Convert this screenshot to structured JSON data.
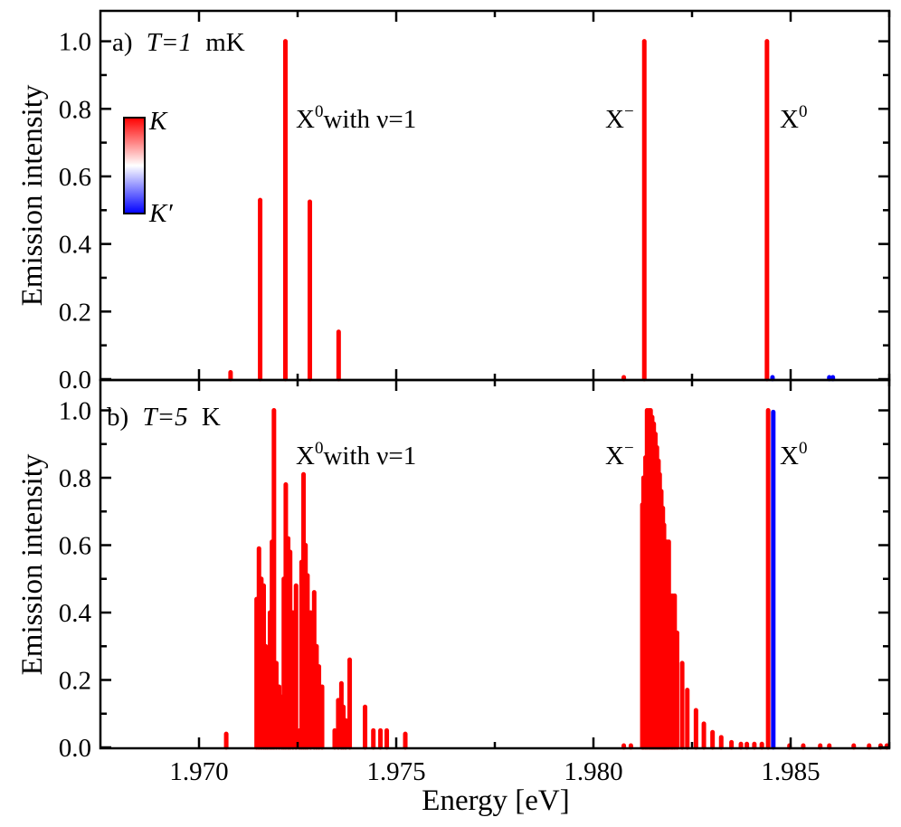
{
  "chart_data": [
    {
      "type": "bar",
      "panel_label": "a)",
      "title_var": "T=1",
      "title_unit": "mK",
      "ylabel": "Emission intensity",
      "xlabel": "",
      "xlim": [
        1.9675,
        1.9875
      ],
      "ylim": [
        0,
        1.09
      ],
      "xticks": [
        1.97,
        1.975,
        1.98,
        1.985
      ],
      "yticks": [
        0.0,
        0.2,
        0.4,
        0.6,
        0.8,
        1.0
      ],
      "ytick_labels": [
        "0.0",
        "0.2",
        "0.4",
        "0.6",
        "0.8",
        "1.0"
      ],
      "grid": false,
      "annotations": [
        {
          "base": "X",
          "sup": "0",
          "rest": "with ν=1"
        },
        {
          "base": "X",
          "sup": "−",
          "rest": ""
        },
        {
          "base": "X",
          "sup": "0",
          "rest": ""
        }
      ],
      "colorbar": {
        "top_label": "K",
        "bottom_label": "K′",
        "top_color": "#ff0000",
        "mid_color": "#ffffff",
        "bottom_color": "#0000ff"
      },
      "series": [
        {
          "name": "K",
          "color": "#ff0000",
          "points": [
            [
              1.9708,
              0.02
            ],
            [
              1.97155,
              0.53
            ],
            [
              1.97219,
              1.0
            ],
            [
              1.97281,
              0.525
            ],
            [
              1.97354,
              0.14
            ],
            [
              1.98077,
              0.003
            ],
            [
              1.98129,
              1.0
            ],
            [
              1.9844,
              1.0
            ]
          ]
        },
        {
          "name": "K′",
          "color": "#0000ff",
          "points": [
            [
              1.98454,
              0.005
            ],
            [
              1.98598,
              0.005
            ],
            [
              1.98607,
              0.005
            ]
          ]
        }
      ]
    },
    {
      "type": "bar",
      "panel_label": "b)",
      "title_var": "T=5",
      "title_unit": "K",
      "ylabel": "Emission intensity",
      "xlabel": "Energy [eV]",
      "xlim": [
        1.9675,
        1.9875
      ],
      "ylim": [
        0,
        1.09
      ],
      "xticks": [
        1.97,
        1.975,
        1.98,
        1.985
      ],
      "xtick_labels": [
        "1.970",
        "1.975",
        "1.980",
        "1.985"
      ],
      "yticks": [
        0.0,
        0.2,
        0.4,
        0.6,
        0.8,
        1.0
      ],
      "ytick_labels": [
        "0.0",
        "0.2",
        "0.4",
        "0.6",
        "0.8",
        "1.0"
      ],
      "grid": false,
      "annotations": [
        {
          "base": "X",
          "sup": "0",
          "rest": "with ν=1"
        },
        {
          "base": "X",
          "sup": "−",
          "rest": ""
        },
        {
          "base": "X",
          "sup": "0",
          "rest": ""
        }
      ],
      "series": [
        {
          "name": "K",
          "color": "#ff0000",
          "points": [
            [
              1.97069,
              0.04
            ],
            [
              1.97146,
              0.44
            ],
            [
              1.97152,
              0.59
            ],
            [
              1.97158,
              0.5
            ],
            [
              1.97164,
              0.48
            ],
            [
              1.97169,
              0.3
            ],
            [
              1.97174,
              0.16
            ],
            [
              1.9718,
              0.4
            ],
            [
              1.97185,
              0.61
            ],
            [
              1.9719,
              1.0
            ],
            [
              1.97196,
              0.25
            ],
            [
              1.97203,
              0.18
            ],
            [
              1.9721,
              0.15
            ],
            [
              1.97215,
              0.5
            ],
            [
              1.9722,
              0.78
            ],
            [
              1.97226,
              0.62
            ],
            [
              1.97231,
              0.58
            ],
            [
              1.97238,
              0.4
            ],
            [
              1.97246,
              0.48
            ],
            [
              1.97255,
              0.05
            ],
            [
              1.9726,
              0.55
            ],
            [
              1.97265,
              0.81
            ],
            [
              1.9727,
              0.6
            ],
            [
              1.97275,
              0.51
            ],
            [
              1.97283,
              0.4
            ],
            [
              1.97292,
              0.46
            ],
            [
              1.97298,
              0.3
            ],
            [
              1.97304,
              0.24
            ],
            [
              1.97312,
              0.18
            ],
            [
              1.97344,
              0.05
            ],
            [
              1.97353,
              0.14
            ],
            [
              1.97361,
              0.19
            ],
            [
              1.97366,
              0.12
            ],
            [
              1.97372,
              0.08
            ],
            [
              1.97382,
              0.26
            ],
            [
              1.97421,
              0.12
            ],
            [
              1.97442,
              0.05
            ],
            [
              1.9746,
              0.05
            ],
            [
              1.97476,
              0.05
            ],
            [
              1.97523,
              0.04
            ],
            [
              1.98077,
              0.005
            ],
            [
              1.98095,
              0.005
            ],
            [
              1.98124,
              0.72
            ],
            [
              1.98127,
              0.8
            ],
            [
              1.98132,
              0.86
            ],
            [
              1.98136,
              1.0
            ],
            [
              1.98141,
              1.0
            ],
            [
              1.98145,
              1.0
            ],
            [
              1.98149,
              0.98
            ],
            [
              1.98153,
              0.96
            ],
            [
              1.98157,
              0.93
            ],
            [
              1.98161,
              0.89
            ],
            [
              1.98165,
              0.85
            ],
            [
              1.98168,
              0.81
            ],
            [
              1.98172,
              0.76
            ],
            [
              1.98176,
              0.71
            ],
            [
              1.98179,
              0.66
            ],
            [
              1.98182,
              0.61
            ],
            [
              1.98186,
              0.61
            ],
            [
              1.98191,
              0.61
            ],
            [
              1.98197,
              0.45
            ],
            [
              1.98201,
              0.45
            ],
            [
              1.98206,
              0.45
            ],
            [
              1.98212,
              0.34
            ],
            [
              1.98225,
              0.25
            ],
            [
              1.98238,
              0.17
            ],
            [
              1.9826,
              0.11
            ],
            [
              1.9828,
              0.07
            ],
            [
              1.98302,
              0.045
            ],
            [
              1.98324,
              0.03
            ],
            [
              1.9835,
              0.015
            ],
            [
              1.98374,
              0.01
            ],
            [
              1.98389,
              0.01
            ],
            [
              1.98408,
              0.01
            ],
            [
              1.98427,
              0.01
            ],
            [
              1.98443,
              1.0
            ],
            [
              1.98497,
              0.005
            ],
            [
              1.98532,
              0.005
            ],
            [
              1.98575,
              0.005
            ],
            [
              1.98598,
              0.005
            ],
            [
              1.9866,
              0.005
            ],
            [
              1.98699,
              0.005
            ],
            [
              1.98728,
              0.005
            ],
            [
              1.98744,
              0.005
            ]
          ]
        },
        {
          "name": "K′",
          "color": "#0000ff",
          "points": [
            [
              1.98456,
              0.995
            ]
          ]
        }
      ]
    }
  ]
}
